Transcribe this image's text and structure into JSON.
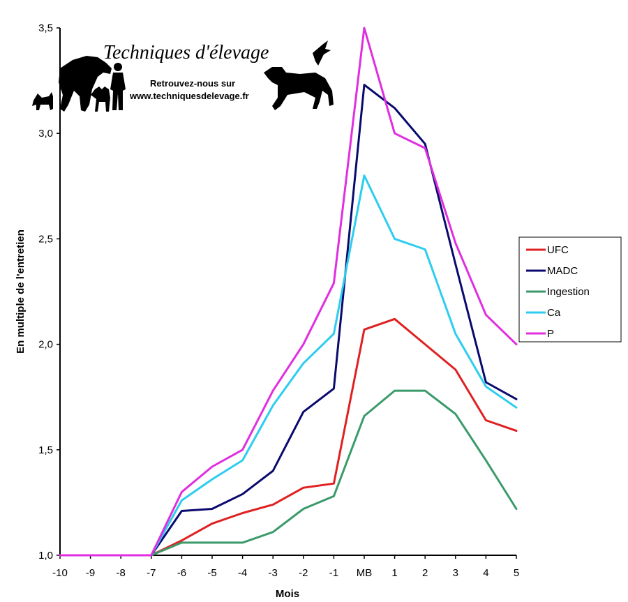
{
  "watermark": {
    "title": "Techniques d'élevage",
    "line1": "Retrouvez-nous sur",
    "line2": "www.techniquesdelevage.fr",
    "icons": [
      "horse-icon",
      "dog-icon",
      "cat-icon",
      "person-icon",
      "bird-icon",
      "horse-running-icon"
    ]
  },
  "chart_data": {
    "type": "line",
    "title": "",
    "xlabel": "Mois",
    "ylabel": "En multiple de l'entretien",
    "categories": [
      "-10",
      "-9",
      "-8",
      "-7",
      "-6",
      "-5",
      "-4",
      "-3",
      "-2",
      "-1",
      "MB",
      "1",
      "2",
      "3",
      "4",
      "5"
    ],
    "ylim": [
      1.0,
      3.5
    ],
    "yticks": [
      1.0,
      1.5,
      2.0,
      2.5,
      3.0,
      3.5
    ],
    "ytick_labels": [
      "1,0",
      "1,5",
      "2,0",
      "2,5",
      "3,0",
      "3,5"
    ],
    "grid": false,
    "legend_position": "right",
    "series": [
      {
        "name": "UFC",
        "color": "#e02020",
        "values": [
          1.0,
          1.0,
          1.0,
          1.0,
          1.07,
          1.15,
          1.2,
          1.24,
          1.32,
          1.34,
          2.07,
          2.12,
          2.0,
          1.88,
          1.64,
          1.59
        ]
      },
      {
        "name": "MADC",
        "color": "#0a0a6e",
        "values": [
          1.0,
          1.0,
          1.0,
          1.0,
          1.21,
          1.22,
          1.29,
          1.4,
          1.68,
          1.79,
          3.23,
          3.12,
          2.95,
          2.38,
          1.82,
          1.74
        ]
      },
      {
        "name": "Ingestion",
        "color": "#3a9a6a",
        "values": [
          1.0,
          1.0,
          1.0,
          1.0,
          1.06,
          1.06,
          1.06,
          1.11,
          1.22,
          1.28,
          1.66,
          1.78,
          1.78,
          1.67,
          1.45,
          1.22
        ]
      },
      {
        "name": "Ca",
        "color": "#2ccdee",
        "values": [
          1.0,
          1.0,
          1.0,
          1.0,
          1.26,
          1.36,
          1.45,
          1.71,
          1.91,
          2.05,
          2.8,
          2.5,
          2.45,
          2.05,
          1.8,
          1.7
        ]
      },
      {
        "name": "P",
        "color": "#e02ee0",
        "values": [
          1.0,
          1.0,
          1.0,
          1.0,
          1.3,
          1.42,
          1.5,
          1.78,
          2.0,
          2.29,
          3.5,
          3.0,
          2.93,
          2.48,
          2.14,
          2.0
        ]
      }
    ]
  }
}
